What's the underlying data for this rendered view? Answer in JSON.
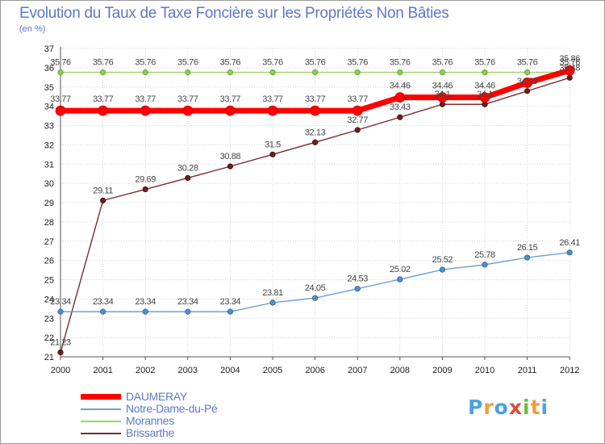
{
  "chart_data": {
    "type": "line",
    "title": "Evolution du Taux de Taxe Foncière sur les Propriétés Non Bâties",
    "subtitle": "(en %)",
    "xlabel": "",
    "ylabel": "(en %)",
    "x": [
      "2000",
      "2001",
      "2002",
      "2003",
      "2004",
      "2005",
      "2006",
      "2007",
      "2008",
      "2009",
      "2010",
      "2011",
      "2012"
    ],
    "ylim": [
      21,
      37
    ],
    "yticks": [
      "21",
      "22",
      "23",
      "24",
      "25",
      "26",
      "27",
      "28",
      "29",
      "30",
      "31",
      "32",
      "33",
      "34",
      "35",
      "36",
      "37"
    ],
    "grid": true,
    "legend_position": "bottom-left",
    "series": [
      {
        "name": "DAUMERAY",
        "color": "#ff0000",
        "values": [
          33.77,
          33.77,
          33.77,
          33.77,
          33.77,
          33.77,
          33.77,
          33.77,
          34.46,
          34.46,
          34.46,
          35.22,
          35.86
        ],
        "labels": [
          "33.77",
          "33.77",
          "33.77",
          "33.77",
          "33.77",
          "33.77",
          "33.77",
          "33.77",
          "34.46",
          "34.46",
          "34.46",
          "",
          "35.86"
        ]
      },
      {
        "name": "Notre-Dame-du-Pé",
        "color": "#6fa0d8",
        "values": [
          23.34,
          23.34,
          23.34,
          23.34,
          23.34,
          23.81,
          24.05,
          24.53,
          25.02,
          25.52,
          25.78,
          26.15,
          26.41
        ],
        "labels": [
          "23.34",
          "23.34",
          "23.34",
          "23.34",
          "23.34",
          "23.81",
          "24.05",
          "24.53",
          "25.02",
          "25.52",
          "25.78",
          "26.15",
          "26.41"
        ]
      },
      {
        "name": "Morannes",
        "color": "#99d660",
        "values": [
          35.76,
          35.76,
          35.76,
          35.76,
          35.76,
          35.76,
          35.76,
          35.76,
          35.76,
          35.76,
          35.76,
          35.76,
          35.76
        ],
        "labels": [
          "35.76",
          "35.76",
          "35.76",
          "35.76",
          "35.76",
          "35.76",
          "35.76",
          "35.76",
          "35.76",
          "35.76",
          "35.76",
          "35.76",
          "35.76"
        ]
      },
      {
        "name": "Brissarthe",
        "color": "#7b2c2c",
        "values": [
          21.23,
          29.11,
          29.69,
          30.28,
          30.88,
          31.5,
          32.13,
          32.77,
          33.43,
          34.1,
          34.1,
          34.79,
          35.48
        ],
        "labels": [
          "21.23",
          "29.11",
          "29.69",
          "30.28",
          "30.88",
          "31.5",
          "32.13",
          "32.77",
          "33.43",
          "34.1",
          "34.1",
          "34.79",
          "35.48"
        ]
      }
    ]
  },
  "logo": {
    "letters": [
      "P",
      "r",
      "o",
      "x",
      "i",
      "t",
      "i"
    ],
    "colors": [
      "#4aa3df",
      "#e8a23a",
      "#4aa3df",
      "#e24a3a",
      "#6cbf3a",
      "#e8a23a",
      "#4aa3df"
    ]
  }
}
